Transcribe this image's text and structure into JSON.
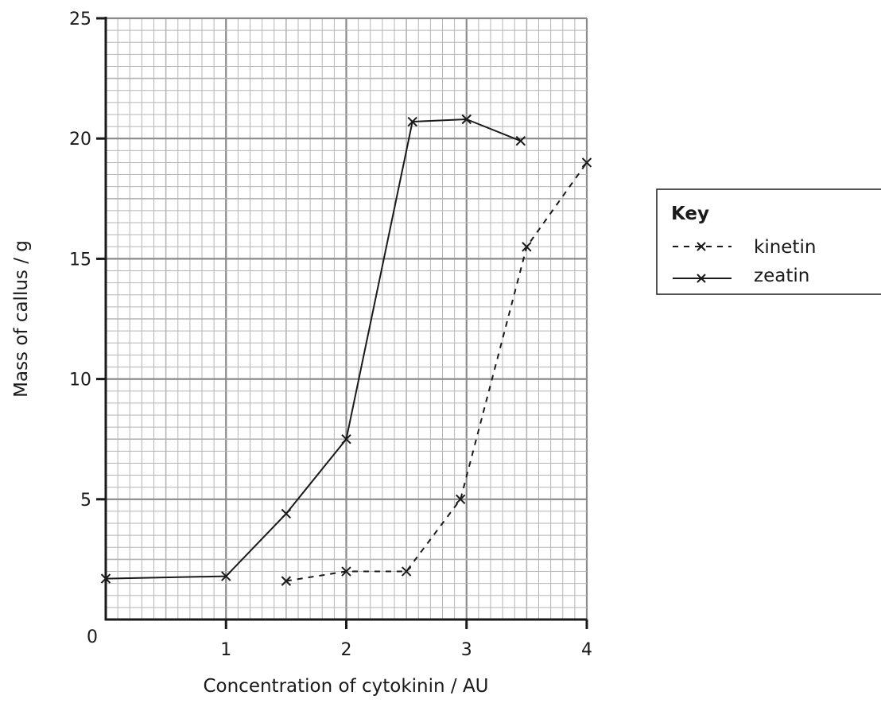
{
  "chart_data": {
    "type": "line",
    "xlabel": "Concentration of cytokinin / AU",
    "ylabel": "Mass of callus / g",
    "xlim": [
      0,
      4
    ],
    "ylim": [
      0,
      25
    ],
    "x_ticks": [
      "1",
      "2",
      "3",
      "4"
    ],
    "y_ticks": [
      "0",
      "5",
      "10",
      "15",
      "20",
      "25"
    ],
    "grid": true,
    "legend_position": "right",
    "key": {
      "title": "Key",
      "entries": [
        "kinetin",
        "zeatin"
      ]
    },
    "series": [
      {
        "name": "zeatin",
        "line_style": "solid",
        "marker": "x",
        "x": [
          0.0,
          1.0,
          1.5,
          2.0,
          2.55,
          3.0,
          3.45
        ],
        "y": [
          1.7,
          1.8,
          4.4,
          7.5,
          20.7,
          20.8,
          19.9
        ]
      },
      {
        "name": "kinetin",
        "line_style": "dashed",
        "marker": "x",
        "x": [
          1.5,
          2.0,
          2.5,
          2.95,
          3.5,
          4.0
        ],
        "y": [
          1.6,
          2.0,
          2.0,
          5.0,
          15.5,
          19.0
        ]
      }
    ],
    "colors": {
      "line": "#1a1a1a",
      "grid_minor": "#b5b5b5",
      "grid_major": "#8a8a8a"
    }
  }
}
